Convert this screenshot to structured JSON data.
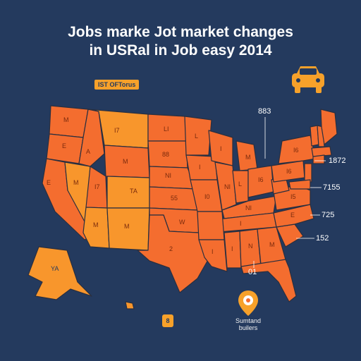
{
  "header": {
    "title_line1": "Jobs marke Jot market changes",
    "title_line2": "in USRal in Job easy 2014"
  },
  "legend": {
    "badge_label": "IST OFTorus"
  },
  "colors": {
    "background": "#243a5e",
    "state_primary": "#f46d2f",
    "state_secondary": "#f8962c",
    "border": "#2a2f3f",
    "accent": "#f7a12a"
  },
  "icons": {
    "top_right": "car-icon",
    "bottom": "location-pin-icon"
  },
  "callouts": [
    {
      "id": "c1",
      "text": "883"
    },
    {
      "id": "c2",
      "text": "1872"
    },
    {
      "id": "c3",
      "text": "7155"
    },
    {
      "id": "c4",
      "text": "725"
    },
    {
      "id": "c5",
      "text": "152"
    },
    {
      "id": "c6",
      "text": "01"
    }
  ],
  "state_labels": {
    "wa": "M",
    "or": "E",
    "id": "A",
    "mt": "I7",
    "nd": "LI",
    "sd": "88",
    "ne": "NI",
    "ks": "55",
    "ok": "W",
    "tx": "2",
    "nm": "M",
    "az": "M",
    "co": "TA",
    "ut": "I7",
    "nv": "M",
    "ca": "E",
    "mn": "L",
    "ia": "I",
    "mo": "I0",
    "wi": "I",
    "il": "NI",
    "mi": "M",
    "in": "L",
    "oh": "I6",
    "ky": "NI",
    "tn": "I",
    "ga": "M",
    "al": "N",
    "ms": "I",
    "la": "I",
    "ny": "I6",
    "pa": "I6",
    "va": "I5",
    "nc": "E",
    "ak": "YA",
    "wy": "M"
  },
  "pin_label": {
    "line1": "Sumtand",
    "line2": "builers"
  },
  "small_badge": "8"
}
